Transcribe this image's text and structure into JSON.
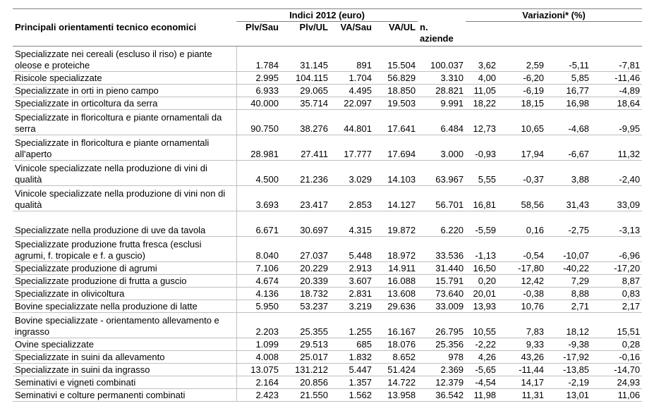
{
  "table": {
    "header": {
      "title": "Principali orientamenti tecnico economici",
      "group_indices": "Indici 2012 (euro)",
      "group_variations": "Variazioni* (%)",
      "columns": [
        "Plv/Sau",
        "Plv/UL",
        "VA/Sau",
        "VA/UL",
        "n. aziende"
      ]
    },
    "rows": [
      [
        "Specializzate nei cereali (escluso il riso) e piante oleose e proteiche",
        "1.784",
        "31.145",
        "891",
        "15.504",
        "100.037",
        "3,62",
        "2,59",
        "-5,11",
        "-7,81"
      ],
      [
        "Risicole specializzate",
        "2.995",
        "104.115",
        "1.704",
        "56.829",
        "3.310",
        "4,00",
        "-6,20",
        "5,85",
        "-11,46"
      ],
      [
        "Specializzate in orti in pieno campo",
        "6.933",
        "29.065",
        "4.495",
        "18.850",
        "28.821",
        "11,05",
        "-6,19",
        "16,77",
        "-4,89"
      ],
      [
        "Specializzate in orticoltura da serra",
        "40.000",
        "35.714",
        "22.097",
        "19.503",
        "9.991",
        "18,22",
        "18,15",
        "16,98",
        "18,64"
      ],
      [
        "Specializzate in floricoltura e piante ornamentali da serra",
        "90.750",
        "38.276",
        "44.801",
        "17.641",
        "6.484",
        "12,73",
        "10,65",
        "-4,68",
        "-9,95"
      ],
      [
        "Specializzate in floricoltura e piante ornamentali all'aperto",
        "28.981",
        "27.411",
        "17.777",
        "17.694",
        "3.000",
        "-0,93",
        "17,94",
        "-6,67",
        "11,32"
      ],
      [
        "Vinicole specializzate nella produzione di vini di qualità",
        "4.500",
        "21.236",
        "3.029",
        "14.103",
        "63.967",
        "5,55",
        "-0,37",
        "3,88",
        "-2,40"
      ],
      [
        "Vinicole specializzate nella produzione di vini non di qualità",
        "3.693",
        "23.417",
        "2.853",
        "14.127",
        "56.701",
        "16,81",
        "58,56",
        "31,43",
        "33,09"
      ],
      [
        "Specializzate nella produzione di uve da tavola",
        "6.671",
        "30.697",
        "4.315",
        "19.872",
        "6.220",
        "-5,59",
        "0,16",
        "-2,75",
        "-3,13"
      ],
      [
        "Specializzate produzione frutta fresca (esclusi agrumi, f. tropicale e f. a guscio)",
        "8.040",
        "27.037",
        "5.448",
        "18.972",
        "33.536",
        "-1,13",
        "-0,54",
        "-10,07",
        "-6,96"
      ],
      [
        "Specializzate produzione di agrumi",
        "7.106",
        "20.229",
        "2.913",
        "14.911",
        "31.440",
        "16,50",
        "-17,80",
        "-40,22",
        "-17,20"
      ],
      [
        "Specializzate produzione di frutta a guscio",
        "4.674",
        "20.339",
        "3.607",
        "16.088",
        "15.791",
        "0,20",
        "12,42",
        "7,29",
        "8,87"
      ],
      [
        "Specializzate in olivicoltura",
        "4.136",
        "18.732",
        "2.831",
        "13.608",
        "73.640",
        "20,01",
        "-0,38",
        "8,88",
        "0,83"
      ],
      [
        "Bovine specializzate nella produzione di latte",
        "5.950",
        "53.237",
        "3.219",
        "29.636",
        "33.009",
        "13,93",
        "10,76",
        "2,71",
        "2,17"
      ],
      [
        "Bovine specializzate - orientamento allevamento e ingrasso",
        "2.203",
        "25.355",
        "1.255",
        "16.167",
        "26.795",
        "10,55",
        "7,83",
        "18,12",
        "15,51"
      ],
      [
        "Ovine specializzate",
        "1.099",
        "29.513",
        "685",
        "18.076",
        "25.356",
        "-2,22",
        "9,33",
        "-9,38",
        "0,28"
      ],
      [
        "Specializzate in suini da allevamento",
        "4.008",
        "25.017",
        "1.832",
        "8.652",
        "978",
        "4,26",
        "43,26",
        "-17,92",
        "-0,16"
      ],
      [
        "Specializzate in suini da ingrasso",
        "13.075",
        "131.212",
        "5.447",
        "51.424",
        "2.369",
        "-5,65",
        "-11,44",
        "-13,85",
        "-14,70"
      ],
      [
        "Seminativi e vigneti combinati",
        "2.164",
        "20.856",
        "1.357",
        "14.722",
        "12.379",
        "-4,54",
        "14,17",
        "-2,19",
        "24,93"
      ],
      [
        "Seminativi e colture permanenti combinati",
        "2.423",
        "21.550",
        "1.562",
        "13.958",
        "36.542",
        "11,98",
        "11,31",
        "13,01",
        "11,06"
      ]
    ]
  }
}
